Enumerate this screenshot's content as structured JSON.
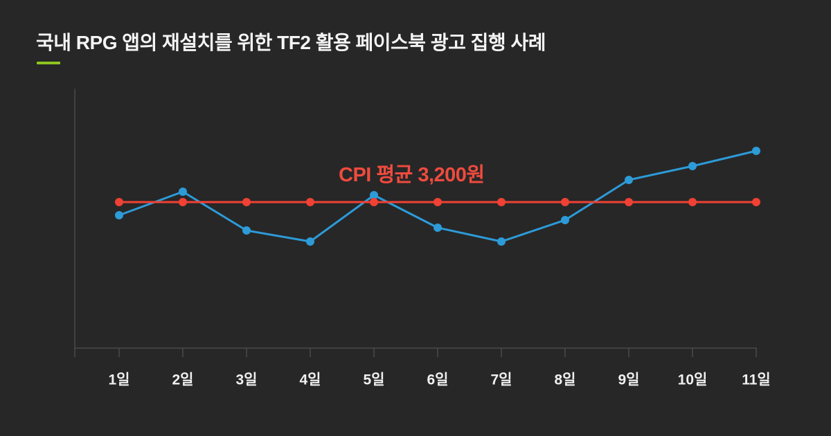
{
  "page": {
    "background": "#272727",
    "title": "국내 RPG 앱의 재설치를 위한 TF2 활용 페이스북 광고 집행 사례",
    "title_color": "#f4f4f4",
    "accent_color": "#8fc31f"
  },
  "chart_data": {
    "type": "line",
    "title": "",
    "xlabel": "",
    "ylabel": "",
    "categories": [
      "1일",
      "2일",
      "3일",
      "4일",
      "5일",
      "6일",
      "7일",
      "8일",
      "9일",
      "10일",
      "11일"
    ],
    "series": [
      {
        "name": "daily-cpi",
        "color": "#2d9bd8",
        "values": [
          3010,
          3350,
          2790,
          2630,
          3300,
          2830,
          2630,
          2940,
          3520,
          3720,
          3940
        ]
      },
      {
        "name": "average-cpi",
        "color": "#f04134",
        "values": [
          3200,
          3200,
          3200,
          3200,
          3200,
          3200,
          3200,
          3200,
          3200,
          3200,
          3200
        ]
      }
    ],
    "average_value": 3200,
    "annotation": {
      "text": "CPI 평균 3,200원",
      "color": "#ef4b3e"
    },
    "ylim": [
      1090,
      4840
    ],
    "grid": false,
    "legend": "none",
    "y_axis_tick_labels": "none",
    "axis_color": "#4a4a4a",
    "x_tick_label_color": "#f0f0f0"
  }
}
